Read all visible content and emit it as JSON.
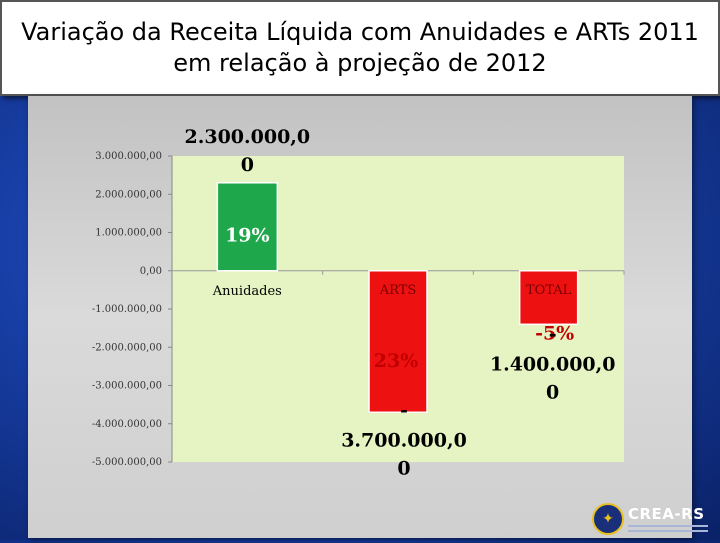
{
  "title": {
    "line1": "Variação da Receita Líquida com Anuidades e ARTs  2011",
    "line2": "em relação à projeção de 2012"
  },
  "chart_data": {
    "type": "bar",
    "categories": [
      "Anuidades",
      "ARTS",
      "TOTAL"
    ],
    "values": [
      2300000,
      -3700000,
      -1400000
    ],
    "value_labels": [
      [
        "2.300.000,0",
        "0"
      ],
      [
        "-",
        "3.700.000,0",
        "0"
      ],
      [
        "-",
        "1.400.000,0",
        "0"
      ]
    ],
    "percent_labels": [
      "19%",
      "23%",
      "-5%"
    ],
    "ylim": [
      -5000000,
      3000000
    ],
    "yticks": [
      3000000,
      2000000,
      1000000,
      0,
      -1000000,
      -2000000,
      -3000000,
      -4000000,
      -5000000
    ],
    "ytick_labels": [
      "3.000.000,00",
      "2.000.000,00",
      "1.000.000,00",
      "0,00",
      "-1.000.000,00",
      "-2.000.000,00",
      "-3.000.000,00",
      "-4.000.000,00",
      "-5.000.000,00"
    ],
    "colors": [
      "#1fa84b",
      "#ee1111",
      "#ee1111"
    ],
    "label_colors": [
      "#ffffff",
      "#c00000",
      "#c00000"
    ],
    "plot_background": "#e6f3c2",
    "grid": false,
    "legend": "none"
  },
  "logo": {
    "name": "CREA-RS",
    "seal_icon": "✦"
  }
}
